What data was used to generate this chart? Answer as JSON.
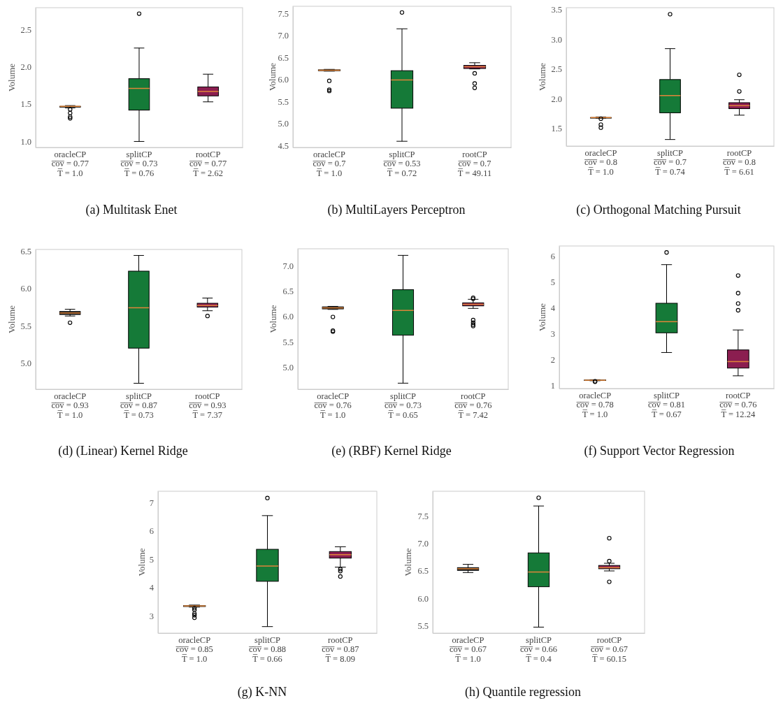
{
  "chart_data": [
    {
      "type": "box",
      "title": "(a) Multitask Enet",
      "ylabel": "Volume",
      "categories": [
        "oracleCP\nc̅o̅v̅ = 0.77\nT̅ = 1.0",
        "splitCP\nc̅o̅v̅ = 0.73\nT̅ = 0.76",
        "rootCP\nc̅o̅v̅ = 0.77\nT̅ = 2.62"
      ],
      "colors": [
        "#222222",
        "#157a38",
        "#8b1e50"
      ],
      "boxes": [
        {
          "low": 1.45,
          "q1": 1.46,
          "median": 1.47,
          "q3": 1.47,
          "high": 1.48,
          "outliers": [
            1.43,
            1.38,
            1.33,
            1.31
          ]
        },
        {
          "low": 1.0,
          "q1": 1.42,
          "median": 1.71,
          "q3": 1.84,
          "high": 2.25,
          "outliers": [
            2.71
          ]
        },
        {
          "low": 1.53,
          "q1": 1.61,
          "median": 1.67,
          "q3": 1.73,
          "high": 1.9
        }
      ],
      "ylim": [
        0.92,
        2.79
      ],
      "yticks": [
        {
          "value": 1,
          "label": "1.0"
        },
        1.5,
        {
          "value": 2,
          "label": "2.0"
        },
        2.5
      ]
    },
    {
      "type": "box",
      "title": "(b) MultiLayers Perceptron",
      "ylabel": "Volume",
      "categories": [
        "oracleCP\nc̅o̅v̅ = 0.7\nT̅ = 1.0",
        "splitCP\nc̅o̅v̅ = 0.53\nT̅ = 0.72",
        "rootCP\nc̅o̅v̅ = 0.7\nT̅ = 49.11"
      ],
      "colors": [
        "#222222",
        "#157a38",
        "#8b1e50"
      ],
      "boxes": [
        {
          "low": 6.19,
          "q1": 6.2,
          "median": 6.21,
          "q3": 6.22,
          "high": 6.23,
          "outliers": [
            5.97,
            5.77,
            5.74
          ]
        },
        {
          "low": 4.6,
          "q1": 5.35,
          "median": 5.99,
          "q3": 6.2,
          "high": 7.15,
          "outliers": [
            7.52
          ]
        },
        {
          "low": 6.24,
          "q1": 6.25,
          "median": 6.29,
          "q3": 6.32,
          "high": 6.38,
          "outliers": [
            6.14,
            5.91,
            5.81
          ]
        }
      ],
      "ylim": [
        4.46,
        7.66
      ],
      "yticks": [
        4.5,
        {
          "value": 5,
          "label": "5.0"
        },
        5.5,
        {
          "value": 6,
          "label": "6.0"
        },
        6.5,
        {
          "value": 7,
          "label": "7.0"
        },
        7.5
      ]
    },
    {
      "type": "box",
      "title": "(c) Orthogonal Matching Pursuit",
      "ylabel": "Volume",
      "categories": [
        "oracleCP\nc̅o̅v̅ = 0.8\nT̅ = 1.0",
        "splitCP\nc̅o̅v̅ = 0.7\nT̅ = 0.74",
        "rootCP\nc̅o̅v̅ = 0.8\nT̅ = 6.61"
      ],
      "colors": [
        "#222222",
        "#157a38",
        "#8b1e50"
      ],
      "boxes": [
        {
          "low": 1.67,
          "q1": 1.67,
          "median": 1.68,
          "q3": 1.68,
          "high": 1.69,
          "outliers": [
            1.66,
            1.56,
            1.51
          ]
        },
        {
          "low": 1.31,
          "q1": 1.76,
          "median": 2.05,
          "q3": 2.32,
          "high": 2.84,
          "outliers": [
            3.42
          ]
        },
        {
          "low": 1.72,
          "q1": 1.83,
          "median": 1.88,
          "q3": 1.93,
          "high": 1.98,
          "outliers": [
            2.4,
            2.12
          ]
        }
      ],
      "ylim": [
        1.2,
        3.53
      ],
      "yticks": [
        1.5,
        {
          "value": 2,
          "label": "2.0"
        },
        2.5,
        {
          "value": 3,
          "label": "3.0"
        },
        3.5
      ]
    },
    {
      "type": "box",
      "title": "(d) (Linear) Kernel Ridge",
      "ylabel": "Volume",
      "categories": [
        "oracleCP\nc̅o̅v̅ = 0.93\nT̅ = 1.0",
        "splitCP\nc̅o̅v̅ = 0.87\nT̅ = 0.73",
        "rootCP\nc̅o̅v̅ = 0.93\nT̅ = 7.37"
      ],
      "colors": [
        "#222222",
        "#157a38",
        "#8b1e50"
      ],
      "boxes": [
        {
          "low": 5.63,
          "q1": 5.65,
          "median": 5.67,
          "q3": 5.69,
          "high": 5.72,
          "outliers": [
            5.54
          ]
        },
        {
          "low": 4.73,
          "q1": 5.2,
          "median": 5.74,
          "q3": 6.23,
          "high": 6.44
        },
        {
          "low": 5.7,
          "q1": 5.75,
          "median": 5.77,
          "q3": 5.8,
          "high": 5.87,
          "outliers": [
            5.63
          ]
        }
      ],
      "ylim": [
        4.65,
        6.52
      ],
      "yticks": [
        {
          "value": 5,
          "label": "5.0"
        },
        5.5,
        {
          "value": 6,
          "label": "6.0"
        },
        6.5
      ]
    },
    {
      "type": "box",
      "title": "(e) (RBF) Kernel Ridge",
      "ylabel": "Volume",
      "categories": [
        "oracleCP\nc̅o̅v̅ = 0.76\nT̅ = 1.0",
        "splitCP\nc̅o̅v̅ = 0.73\nT̅ = 0.65",
        "rootCP\nc̅o̅v̅ = 0.76\nT̅ = 7.42"
      ],
      "colors": [
        "#222222",
        "#157a38",
        "#8b1e50"
      ],
      "boxes": [
        {
          "low": 6.14,
          "q1": 6.15,
          "median": 6.17,
          "q3": 6.19,
          "high": 6.2,
          "outliers": [
            5.99,
            5.72,
            5.7
          ]
        },
        {
          "low": 4.68,
          "q1": 5.63,
          "median": 6.12,
          "q3": 6.53,
          "high": 7.21
        },
        {
          "low": 6.16,
          "q1": 6.21,
          "median": 6.24,
          "q3": 6.27,
          "high": 6.34,
          "outliers": [
            6.37,
            6.35,
            5.93,
            5.88,
            5.84,
            5.81
          ]
        }
      ],
      "ylim": [
        4.56,
        7.34
      ],
      "yticks": [
        {
          "value": 5,
          "label": "5.0"
        },
        5.5,
        {
          "value": 6,
          "label": "6.0"
        },
        6.5,
        {
          "value": 7,
          "label": "7.0"
        }
      ]
    },
    {
      "type": "box",
      "title": "(f) Support Vector Regression",
      "ylabel": "Volume",
      "categories": [
        "oracleCP\nc̅o̅v̅ = 0.78\nT̅ = 1.0",
        "splitCP\nc̅o̅v̅ = 0.81\nT̅ = 0.67",
        "rootCP\nc̅o̅v̅ = 0.76\nT̅ = 12.24"
      ],
      "colors": [
        "#222222",
        "#157a38",
        "#8b1e50"
      ],
      "boxes": [
        {
          "low": 1.19,
          "q1": 1.2,
          "median": 1.21,
          "q3": 1.22,
          "high": 1.23,
          "outliers": [
            1.17,
            1.15
          ]
        },
        {
          "low": 2.28,
          "q1": 3.04,
          "median": 3.47,
          "q3": 4.18,
          "high": 5.67,
          "outliers": [
            6.14
          ]
        },
        {
          "low": 1.38,
          "q1": 1.68,
          "median": 1.93,
          "q3": 2.38,
          "high": 3.15,
          "outliers": [
            5.25,
            4.57,
            4.17,
            3.91
          ]
        }
      ],
      "ylim": [
        0.89,
        6.39
      ],
      "yticks": [
        1,
        2,
        3,
        4,
        5,
        6
      ]
    },
    {
      "type": "box",
      "title": "(g) K-NN",
      "ylabel": "Volume",
      "categories": [
        "oracleCP\nc̅o̅v̅ = 0.85\nT̅ = 1.0",
        "splitCP\nc̅o̅v̅ = 0.88\nT̅ = 0.66",
        "rootCP\nc̅o̅v̅ = 0.87\nT̅ = 8.09"
      ],
      "colors": [
        "#222222",
        "#157a38",
        "#8b1e50"
      ],
      "boxes": [
        {
          "low": 3.31,
          "q1": 3.33,
          "median": 3.35,
          "q3": 3.36,
          "high": 3.38,
          "outliers": [
            3.27,
            3.21,
            3.08,
            3.02,
            2.93
          ]
        },
        {
          "low": 2.62,
          "q1": 4.22,
          "median": 4.76,
          "q3": 5.35,
          "high": 6.54,
          "outliers": [
            7.16
          ]
        },
        {
          "low": 4.72,
          "q1": 5.04,
          "median": 5.16,
          "q3": 5.27,
          "high": 5.44,
          "outliers": [
            4.65,
            4.58,
            4.39
          ]
        }
      ],
      "ylim": [
        2.39,
        7.4
      ],
      "yticks": [
        3,
        4,
        5,
        6,
        7
      ]
    },
    {
      "type": "box",
      "title": "(h) Quantile regression",
      "ylabel": "Volume",
      "categories": [
        "oracleCP\nc̅o̅v̅ = 0.67\nT̅ = 1.0",
        "splitCP\nc̅o̅v̅ = 0.66\nT̅ = 0.4",
        "rootCP\nc̅o̅v̅ = 0.67\nT̅ = 60.15"
      ],
      "colors": [
        "#222222",
        "#157a38",
        "#8b1e50"
      ],
      "boxes": [
        {
          "low": 6.47,
          "q1": 6.51,
          "median": 6.54,
          "q3": 6.56,
          "high": 6.62
        },
        {
          "low": 5.47,
          "q1": 6.21,
          "median": 6.48,
          "q3": 6.83,
          "high": 7.69,
          "outliers": [
            7.84
          ]
        },
        {
          "low": 6.5,
          "q1": 6.54,
          "median": 6.56,
          "q3": 6.6,
          "high": 6.64,
          "outliers": [
            7.1,
            6.68,
            6.3
          ]
        }
      ],
      "ylim": [
        5.36,
        7.96
      ],
      "yticks": [
        5.5,
        {
          "value": 6,
          "label": "6.0"
        },
        6.5,
        {
          "value": 7,
          "label": "7.0"
        },
        7.5
      ]
    }
  ]
}
